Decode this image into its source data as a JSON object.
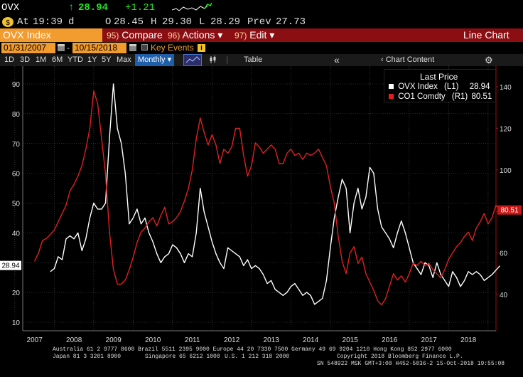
{
  "ticker": {
    "symbol": "OVX",
    "arrow": "↑",
    "last": "28.94",
    "change": "+1.21"
  },
  "quote": {
    "icon": "dollar-icon",
    "at_label": "At",
    "time": "19:39",
    "time_flag": "d",
    "open_label": "O",
    "open": "28.45",
    "high_label": "H",
    "high": "29.30",
    "low_label": "L",
    "low": "28.29",
    "prev_label": "Prev",
    "prev": "27.73"
  },
  "menu": {
    "title": "OVX Index",
    "compare_key": "95)",
    "compare_label": "Compare",
    "actions_key": "96)",
    "actions_label": "Actions",
    "edit_key": "97)",
    "edit_label": "Edit",
    "dropdown_glyph": "▾",
    "chart_type": "Line Chart"
  },
  "dates": {
    "start": "01/31/2007",
    "end": "10/15/2018",
    "key_events_label": "Key Events"
  },
  "toolbar": {
    "periods": [
      "1D",
      "3D",
      "1M",
      "6M",
      "YTD",
      "1Y",
      "5Y",
      "Max"
    ],
    "frequency": "Monthly",
    "table_label": "Table",
    "chart_content_label": "Chart Content",
    "collapse_glyph": "«"
  },
  "legend": {
    "title": "Last Price",
    "series": [
      {
        "name": "OVX Index",
        "axis": "(L1)",
        "value": "28.94",
        "color": "#ffffff"
      },
      {
        "name": "CO1 Comdty",
        "axis": "(R1)",
        "value": "80.51",
        "color": "#e02020"
      }
    ]
  },
  "chart_data": {
    "type": "line",
    "x_labels": [
      "2007",
      "2008",
      "2009",
      "2010",
      "2011",
      "2012",
      "2013",
      "2014",
      "2015",
      "2016",
      "2017",
      "2018"
    ],
    "left_axis": {
      "min": 10,
      "max": 90,
      "ticks": [
        10,
        20,
        30,
        40,
        50,
        60,
        70,
        80,
        90
      ]
    },
    "right_axis": {
      "min": 40,
      "max": 140,
      "ticks": [
        40,
        60,
        80,
        100,
        120,
        140
      ]
    },
    "last_value_labels": {
      "left": "28.94",
      "right": "80.51"
    },
    "colors": {
      "ovx": "#ffffff",
      "brent": "#e02020",
      "grid": "#555555"
    },
    "series": [
      {
        "name": "OVX Index",
        "axis": "left",
        "points": [
          [
            2007.4,
            27
          ],
          [
            2007.5,
            28
          ],
          [
            2007.6,
            32
          ],
          [
            2007.7,
            31
          ],
          [
            2007.8,
            38
          ],
          [
            2007.9,
            39
          ],
          [
            2008.0,
            38
          ],
          [
            2008.1,
            40
          ],
          [
            2008.2,
            34
          ],
          [
            2008.3,
            38
          ],
          [
            2008.4,
            45
          ],
          [
            2008.5,
            50
          ],
          [
            2008.6,
            48
          ],
          [
            2008.7,
            48
          ],
          [
            2008.8,
            50
          ],
          [
            2008.9,
            72
          ],
          [
            2009.0,
            90
          ],
          [
            2009.1,
            75
          ],
          [
            2009.2,
            70
          ],
          [
            2009.3,
            60
          ],
          [
            2009.4,
            43
          ],
          [
            2009.5,
            45
          ],
          [
            2009.6,
            48
          ],
          [
            2009.7,
            43
          ],
          [
            2009.8,
            45
          ],
          [
            2009.9,
            40
          ],
          [
            2010.0,
            37
          ],
          [
            2010.1,
            33
          ],
          [
            2010.2,
            30
          ],
          [
            2010.3,
            32
          ],
          [
            2010.4,
            33
          ],
          [
            2010.5,
            36
          ],
          [
            2010.6,
            35
          ],
          [
            2010.7,
            33
          ],
          [
            2010.8,
            30
          ],
          [
            2010.9,
            33
          ],
          [
            2011.0,
            32
          ],
          [
            2011.1,
            40
          ],
          [
            2011.2,
            55
          ],
          [
            2011.3,
            47
          ],
          [
            2011.4,
            42
          ],
          [
            2011.5,
            37
          ],
          [
            2011.6,
            33
          ],
          [
            2011.7,
            30
          ],
          [
            2011.8,
            28
          ],
          [
            2011.9,
            35
          ],
          [
            2012.0,
            34
          ],
          [
            2012.1,
            33
          ],
          [
            2012.2,
            32
          ],
          [
            2012.3,
            29
          ],
          [
            2012.4,
            31
          ],
          [
            2012.5,
            28
          ],
          [
            2012.6,
            29
          ],
          [
            2012.7,
            28
          ],
          [
            2012.8,
            26
          ],
          [
            2012.9,
            23
          ],
          [
            2013.0,
            24
          ],
          [
            2013.1,
            21
          ],
          [
            2013.2,
            20
          ],
          [
            2013.3,
            19
          ],
          [
            2013.4,
            20
          ],
          [
            2013.5,
            22
          ],
          [
            2013.6,
            23
          ],
          [
            2013.7,
            21
          ],
          [
            2013.8,
            19
          ],
          [
            2013.9,
            20
          ],
          [
            2014.0,
            19
          ],
          [
            2014.1,
            16
          ],
          [
            2014.2,
            17
          ],
          [
            2014.3,
            18
          ],
          [
            2014.4,
            24
          ],
          [
            2014.5,
            35
          ],
          [
            2014.6,
            45
          ],
          [
            2014.7,
            52
          ],
          [
            2014.8,
            58
          ],
          [
            2014.9,
            55
          ],
          [
            2015.0,
            40
          ],
          [
            2015.1,
            50
          ],
          [
            2015.2,
            55
          ],
          [
            2015.3,
            48
          ],
          [
            2015.4,
            52
          ],
          [
            2015.5,
            62
          ],
          [
            2015.6,
            60
          ],
          [
            2015.7,
            48
          ],
          [
            2015.8,
            42
          ],
          [
            2015.9,
            40
          ],
          [
            2016.0,
            38
          ],
          [
            2016.1,
            35
          ],
          [
            2016.2,
            40
          ],
          [
            2016.3,
            44
          ],
          [
            2016.4,
            40
          ],
          [
            2016.5,
            35
          ],
          [
            2016.6,
            30
          ],
          [
            2016.7,
            28
          ],
          [
            2016.8,
            26
          ],
          [
            2016.9,
            30
          ],
          [
            2017.0,
            29
          ],
          [
            2017.1,
            25
          ],
          [
            2017.2,
            30
          ],
          [
            2017.3,
            26
          ],
          [
            2017.4,
            24
          ],
          [
            2017.5,
            22
          ],
          [
            2017.6,
            27
          ],
          [
            2017.7,
            25
          ],
          [
            2017.8,
            22
          ],
          [
            2017.9,
            24
          ],
          [
            2018.0,
            27
          ],
          [
            2018.1,
            26
          ],
          [
            2018.2,
            27
          ],
          [
            2018.3,
            26
          ],
          [
            2018.4,
            24
          ],
          [
            2018.5,
            25
          ],
          [
            2018.6,
            26
          ],
          [
            2018.8,
            28.94
          ]
        ]
      },
      {
        "name": "CO1 Comdty",
        "axis": "right",
        "points": [
          [
            2007.0,
            56
          ],
          [
            2007.1,
            60
          ],
          [
            2007.2,
            66
          ],
          [
            2007.3,
            67
          ],
          [
            2007.4,
            69
          ],
          [
            2007.5,
            71
          ],
          [
            2007.6,
            75
          ],
          [
            2007.7,
            79
          ],
          [
            2007.8,
            83
          ],
          [
            2007.9,
            90
          ],
          [
            2008.0,
            93
          ],
          [
            2008.1,
            97
          ],
          [
            2008.2,
            102
          ],
          [
            2008.3,
            110
          ],
          [
            2008.4,
            120
          ],
          [
            2008.5,
            138
          ],
          [
            2008.6,
            132
          ],
          [
            2008.7,
            115
          ],
          [
            2008.8,
            98
          ],
          [
            2008.9,
            70
          ],
          [
            2009.0,
            52
          ],
          [
            2009.1,
            45
          ],
          [
            2009.2,
            45
          ],
          [
            2009.3,
            47
          ],
          [
            2009.4,
            52
          ],
          [
            2009.5,
            58
          ],
          [
            2009.6,
            65
          ],
          [
            2009.7,
            70
          ],
          [
            2009.8,
            72
          ],
          [
            2009.9,
            75
          ],
          [
            2010.0,
            77
          ],
          [
            2010.1,
            73
          ],
          [
            2010.2,
            78
          ],
          [
            2010.3,
            82
          ],
          [
            2010.4,
            74
          ],
          [
            2010.5,
            75
          ],
          [
            2010.6,
            77
          ],
          [
            2010.7,
            80
          ],
          [
            2010.8,
            85
          ],
          [
            2010.9,
            91
          ],
          [
            2011.0,
            100
          ],
          [
            2011.1,
            115
          ],
          [
            2011.2,
            125
          ],
          [
            2011.3,
            118
          ],
          [
            2011.4,
            112
          ],
          [
            2011.5,
            117
          ],
          [
            2011.6,
            112
          ],
          [
            2011.7,
            103
          ],
          [
            2011.8,
            110
          ],
          [
            2011.9,
            108
          ],
          [
            2012.0,
            111
          ],
          [
            2012.1,
            120
          ],
          [
            2012.2,
            120
          ],
          [
            2012.3,
            107
          ],
          [
            2012.4,
            97
          ],
          [
            2012.5,
            102
          ],
          [
            2012.6,
            113
          ],
          [
            2012.7,
            111
          ],
          [
            2012.8,
            108
          ],
          [
            2012.9,
            110
          ],
          [
            2013.0,
            112
          ],
          [
            2013.1,
            110
          ],
          [
            2013.2,
            103
          ],
          [
            2013.3,
            103
          ],
          [
            2013.4,
            108
          ],
          [
            2013.5,
            110
          ],
          [
            2013.6,
            107
          ],
          [
            2013.7,
            108
          ],
          [
            2013.8,
            105
          ],
          [
            2013.9,
            108
          ],
          [
            2014.0,
            107
          ],
          [
            2014.1,
            108
          ],
          [
            2014.2,
            110
          ],
          [
            2014.3,
            106
          ],
          [
            2014.4,
            102
          ],
          [
            2014.5,
            92
          ],
          [
            2014.6,
            84
          ],
          [
            2014.7,
            68
          ],
          [
            2014.8,
            56
          ],
          [
            2014.9,
            50
          ],
          [
            2015.0,
            60
          ],
          [
            2015.1,
            63
          ],
          [
            2015.2,
            55
          ],
          [
            2015.3,
            58
          ],
          [
            2015.4,
            50
          ],
          [
            2015.5,
            46
          ],
          [
            2015.6,
            42
          ],
          [
            2015.7,
            37
          ],
          [
            2015.8,
            35
          ],
          [
            2015.9,
            38
          ],
          [
            2016.0,
            44
          ],
          [
            2016.1,
            50
          ],
          [
            2016.2,
            47
          ],
          [
            2016.3,
            49
          ],
          [
            2016.4,
            46
          ],
          [
            2016.5,
            50
          ],
          [
            2016.6,
            55
          ],
          [
            2016.7,
            54
          ],
          [
            2016.8,
            56
          ],
          [
            2016.9,
            54
          ],
          [
            2017.0,
            55
          ],
          [
            2017.1,
            52
          ],
          [
            2017.2,
            50
          ],
          [
            2017.3,
            48
          ],
          [
            2017.4,
            52
          ],
          [
            2017.5,
            57
          ],
          [
            2017.6,
            60
          ],
          [
            2017.7,
            63
          ],
          [
            2017.8,
            65
          ],
          [
            2017.9,
            68
          ],
          [
            2018.0,
            70
          ],
          [
            2018.1,
            66
          ],
          [
            2018.2,
            72
          ],
          [
            2018.3,
            75
          ],
          [
            2018.4,
            79
          ],
          [
            2018.5,
            74
          ],
          [
            2018.6,
            77
          ],
          [
            2018.7,
            83
          ],
          [
            2018.8,
            80.51
          ]
        ]
      }
    ]
  },
  "footer": {
    "line1": "Australia 61 2 9777 8600 Brazil 5511 2395 9000 Europe 44 20 7330 7500 Germany 49 69 9204 1210 Hong Kong 852 2977 6000",
    "line2a": "Japan 81 3 3201 8900",
    "line2b": "Singapore 65 6212 1000",
    "line2c": "U.S. 1 212 318 2000",
    "line2d": "Copyright 2018 Bloomberg Finance L.P.",
    "line3": "SN 548922 MSK  GMT+3:00 H452-5036-2 15-Oct-2018 19:55:08"
  }
}
